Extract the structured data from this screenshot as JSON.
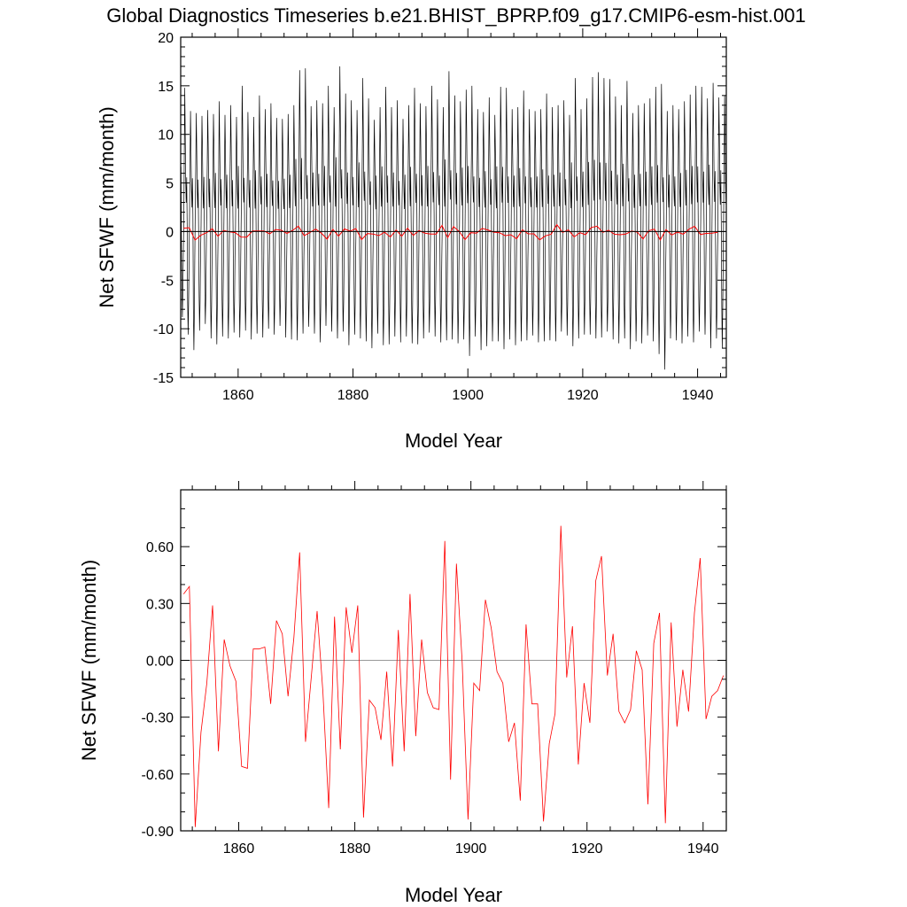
{
  "title": "Global Diagnostics Timeseries b.e21.BHIST_BPRP.f09_g17.CMIP6-esm-hist.001",
  "chart_data": [
    {
      "type": "line",
      "xlabel": "Model Year",
      "ylabel": "Net SFWF (mm/month)",
      "xlim": [
        1850,
        1945
      ],
      "ylim": [
        -15,
        20
      ],
      "x_ticks": [
        "1860",
        "1880",
        "1900",
        "1920",
        "1940"
      ],
      "y_ticks": [
        "20",
        "15",
        "10",
        "5",
        "0",
        "-5",
        "-10",
        "-15"
      ],
      "reference_line_y": 0,
      "series": [
        {
          "color": "#000000",
          "note_value_kind": "monthly",
          "annual_max": [
            14.8,
            12.4,
            12.2,
            11.9,
            12.5,
            12.1,
            13.4,
            12.0,
            13.0,
            11.8,
            15.0,
            12.3,
            11.8,
            14.0,
            12.6,
            13.2,
            11.7,
            11.6,
            12.1,
            13.0,
            16.6,
            16.8,
            12.9,
            13.5,
            13.2,
            15.0,
            12.8,
            17.0,
            14.2,
            13.5,
            12.5,
            15.8,
            13.7,
            11.5,
            12.8,
            14.9,
            12.8,
            13.5,
            11.6,
            13.0,
            14.8,
            13.2,
            12.9,
            15.0,
            13.6,
            12.8,
            16.5,
            14.0,
            13.4,
            14.6,
            15.0,
            12.6,
            12.3,
            13.8,
            12.0,
            14.9,
            14.8,
            12.6,
            12.8,
            14.5,
            12.6,
            12.4,
            12.6,
            14.2,
            12.8,
            13.0,
            13.5,
            12.0,
            15.8,
            12.6,
            13.7,
            15.9,
            16.4,
            15.8,
            15.7,
            13.9,
            13.0,
            15.5,
            12.2,
            13.0,
            13.2,
            13.7,
            14.9,
            15.2,
            12.4,
            13.0,
            12.6,
            13.4,
            14.1,
            15.0,
            14.9,
            13.7,
            15.3,
            13.8,
            14.0
          ],
          "annual_min": [
            -8.8,
            -10.6,
            -12.2,
            -10.2,
            -9.5,
            -11.0,
            -11.6,
            -10.8,
            -11.0,
            -10.4,
            -10.9,
            -10.2,
            -11.1,
            -10.5,
            -10.9,
            -10.0,
            -10.6,
            -9.7,
            -10.9,
            -11.1,
            -11.2,
            -10.5,
            -9.8,
            -10.5,
            -11.4,
            -9.7,
            -10.3,
            -11.0,
            -10.3,
            -11.7,
            -10.6,
            -11.0,
            -11.3,
            -12.0,
            -10.5,
            -11.7,
            -11.6,
            -10.8,
            -11.4,
            -10.8,
            -11.5,
            -11.6,
            -11.0,
            -10.4,
            -10.8,
            -11.4,
            -11.2,
            -11.1,
            -11.5,
            -11.1,
            -12.8,
            -10.8,
            -12.2,
            -11.8,
            -11.3,
            -11.3,
            -12.1,
            -11.1,
            -11.7,
            -11.3,
            -11.2,
            -10.7,
            -11.4,
            -11.3,
            -11.2,
            -11.3,
            -10.3,
            -10.7,
            -11.8,
            -11.0,
            -10.6,
            -10.6,
            -11.0,
            -10.9,
            -10.3,
            -11.1,
            -11.5,
            -11.0,
            -12.1,
            -11.3,
            -11.5,
            -10.7,
            -11.3,
            -12.6,
            -14.2,
            -11.0,
            -11.2,
            -11.5,
            -10.8,
            -11.4,
            -10.3,
            -10.6,
            -12.0,
            -11.0,
            -12.0
          ]
        },
        {
          "color": "#ff0000",
          "note_value_kind": "annual",
          "values_ref": "annual_mean"
        }
      ]
    },
    {
      "type": "line",
      "xlabel": "Model Year",
      "ylabel": "Net SFWF (mm/month)",
      "xlim": [
        1850,
        1944
      ],
      "ylim": [
        -0.9,
        0.9
      ],
      "x_ticks": [
        "1860",
        "1880",
        "1900",
        "1920",
        "1940"
      ],
      "y_ticks": [
        "0.60",
        "0.30",
        "0.00",
        "-0.30",
        "-0.60",
        "-0.90"
      ],
      "reference_line_y": 0,
      "x": [
        1850.5,
        1851.5,
        1852.5,
        1853.5,
        1854.5,
        1855.5,
        1856.5,
        1857.5,
        1858.5,
        1859.5,
        1860.5,
        1861.5,
        1862.5,
        1863.5,
        1864.5,
        1865.5,
        1866.5,
        1867.5,
        1868.5,
        1869.5,
        1870.5,
        1871.5,
        1872.5,
        1873.5,
        1874.5,
        1875.5,
        1876.5,
        1877.5,
        1878.5,
        1879.5,
        1880.5,
        1881.5,
        1882.5,
        1883.5,
        1884.5,
        1885.5,
        1886.5,
        1887.5,
        1888.5,
        1889.5,
        1890.5,
        1891.5,
        1892.5,
        1893.5,
        1894.5,
        1895.5,
        1896.5,
        1897.5,
        1898.5,
        1899.5,
        1900.5,
        1901.5,
        1902.5,
        1903.5,
        1904.5,
        1905.5,
        1906.5,
        1907.5,
        1908.5,
        1909.5,
        1910.5,
        1911.5,
        1912.5,
        1913.5,
        1914.5,
        1915.5,
        1916.5,
        1917.5,
        1918.5,
        1919.5,
        1920.5,
        1921.5,
        1922.5,
        1923.5,
        1924.5,
        1925.5,
        1926.5,
        1927.5,
        1928.5,
        1929.5,
        1930.5,
        1931.5,
        1932.5,
        1933.5,
        1934.5,
        1935.5,
        1936.5,
        1937.5,
        1938.5,
        1939.5,
        1940.5,
        1941.5,
        1942.5,
        1943.5
      ],
      "series": [
        {
          "color": "#ff0000",
          "values": [
            0.35,
            0.39,
            -0.88,
            -0.38,
            -0.12,
            0.29,
            -0.48,
            0.11,
            -0.03,
            -0.11,
            -0.56,
            -0.57,
            0.06,
            0.06,
            0.07,
            -0.23,
            0.21,
            0.14,
            -0.19,
            0.12,
            0.57,
            -0.43,
            -0.09,
            0.26,
            -0.17,
            -0.78,
            0.23,
            -0.47,
            0.28,
            0.04,
            0.29,
            -0.83,
            -0.21,
            -0.25,
            -0.42,
            -0.06,
            -0.56,
            0.16,
            -0.48,
            0.35,
            -0.4,
            0.11,
            -0.17,
            -0.25,
            -0.26,
            0.63,
            -0.63,
            0.51,
            -0.01,
            -0.84,
            -0.12,
            -0.16,
            0.32,
            0.17,
            -0.06,
            -0.12,
            -0.43,
            -0.33,
            -0.74,
            0.19,
            -0.23,
            -0.23,
            -0.85,
            -0.44,
            -0.28,
            0.71,
            -0.09,
            0.18,
            -0.55,
            -0.12,
            -0.33,
            0.42,
            0.55,
            -0.08,
            0.14,
            -0.27,
            -0.33,
            -0.26,
            0.05,
            -0.05,
            -0.76,
            0.09,
            0.25,
            -0.86,
            0.2,
            -0.35,
            -0.05,
            -0.27,
            0.25,
            0.54,
            -0.31,
            -0.19,
            -0.16,
            -0.08
          ]
        }
      ]
    }
  ]
}
